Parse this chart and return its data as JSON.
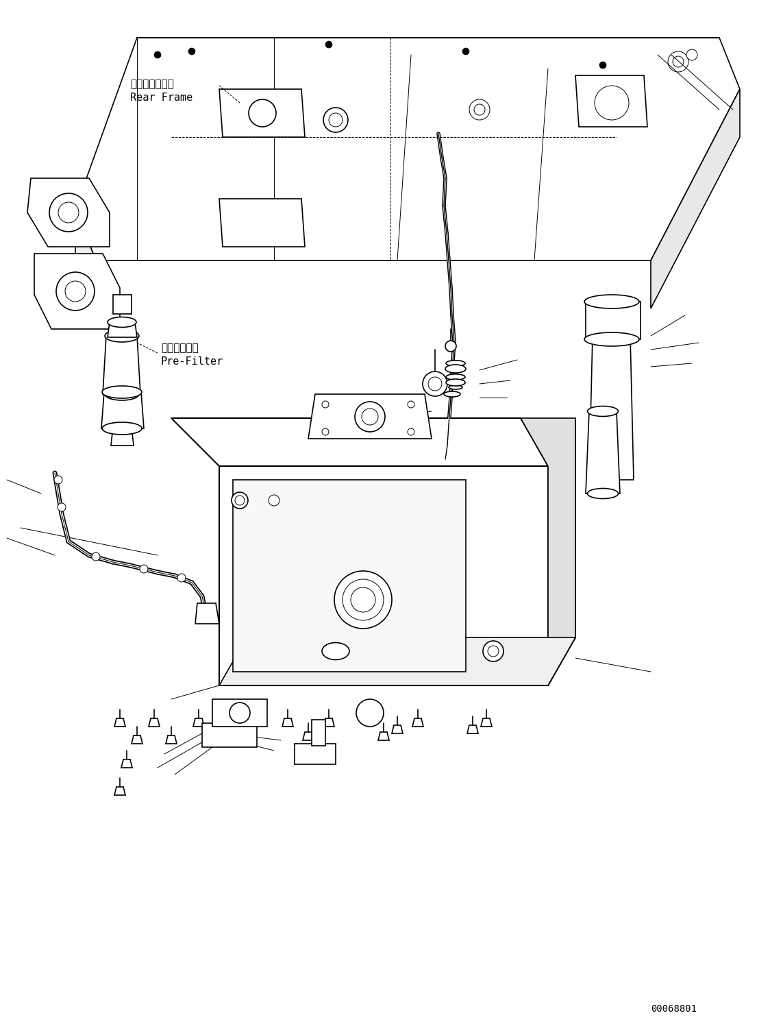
{
  "bg_color": "#ffffff",
  "line_color": "#000000",
  "text_color": "#000000",
  "diagram_number": "00068801",
  "label_rear_frame_jp": "リヤーフレーム",
  "label_rear_frame_en": "Rear Frame",
  "label_pre_filter_jp": "プリフィルタ",
  "label_pre_filter_en": "Pre-Filter",
  "figsize": [
    11.43,
    14.91
  ],
  "dpi": 100
}
